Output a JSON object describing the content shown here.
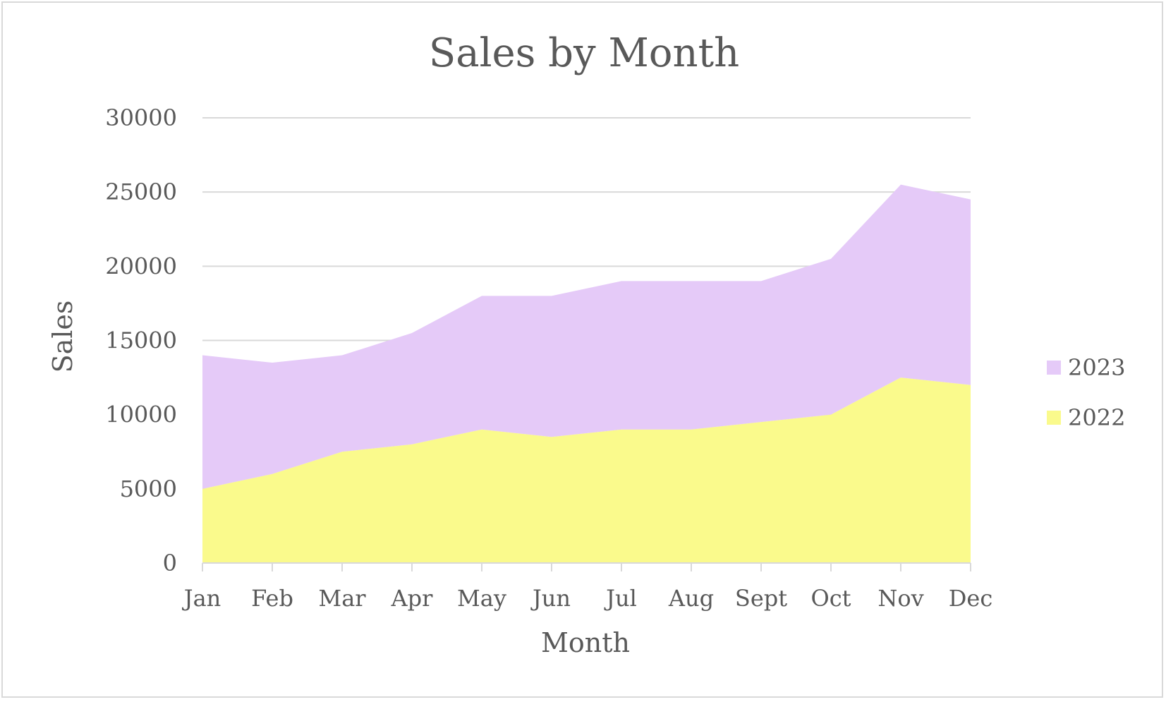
{
  "chart_data": {
    "type": "area",
    "stacked": true,
    "title": "Sales by Month",
    "xlabel": "Month",
    "ylabel": "Sales",
    "ylim": [
      0,
      30000
    ],
    "yticks": [
      "0",
      "5000",
      "10000",
      "15000",
      "20000",
      "25000",
      "30000"
    ],
    "categories": [
      "Jan",
      "Feb",
      "Mar",
      "Apr",
      "May",
      "Jun",
      "Jul",
      "Aug",
      "Sept",
      "Oct",
      "Nov",
      "Dec"
    ],
    "series": [
      {
        "name": "2022",
        "color": "#fafa8c",
        "values": [
          5000,
          6000,
          7500,
          8000,
          9000,
          8500,
          9000,
          9000,
          9500,
          10000,
          12500,
          12000
        ]
      },
      {
        "name": "2023",
        "color": "#e5caf8",
        "values": [
          9000,
          7500,
          6500,
          7500,
          9000,
          9500,
          10000,
          10000,
          9500,
          10500,
          13000,
          12500
        ]
      }
    ],
    "grid": true,
    "legend_position": "right",
    "legend_order": [
      "2023",
      "2022"
    ]
  }
}
